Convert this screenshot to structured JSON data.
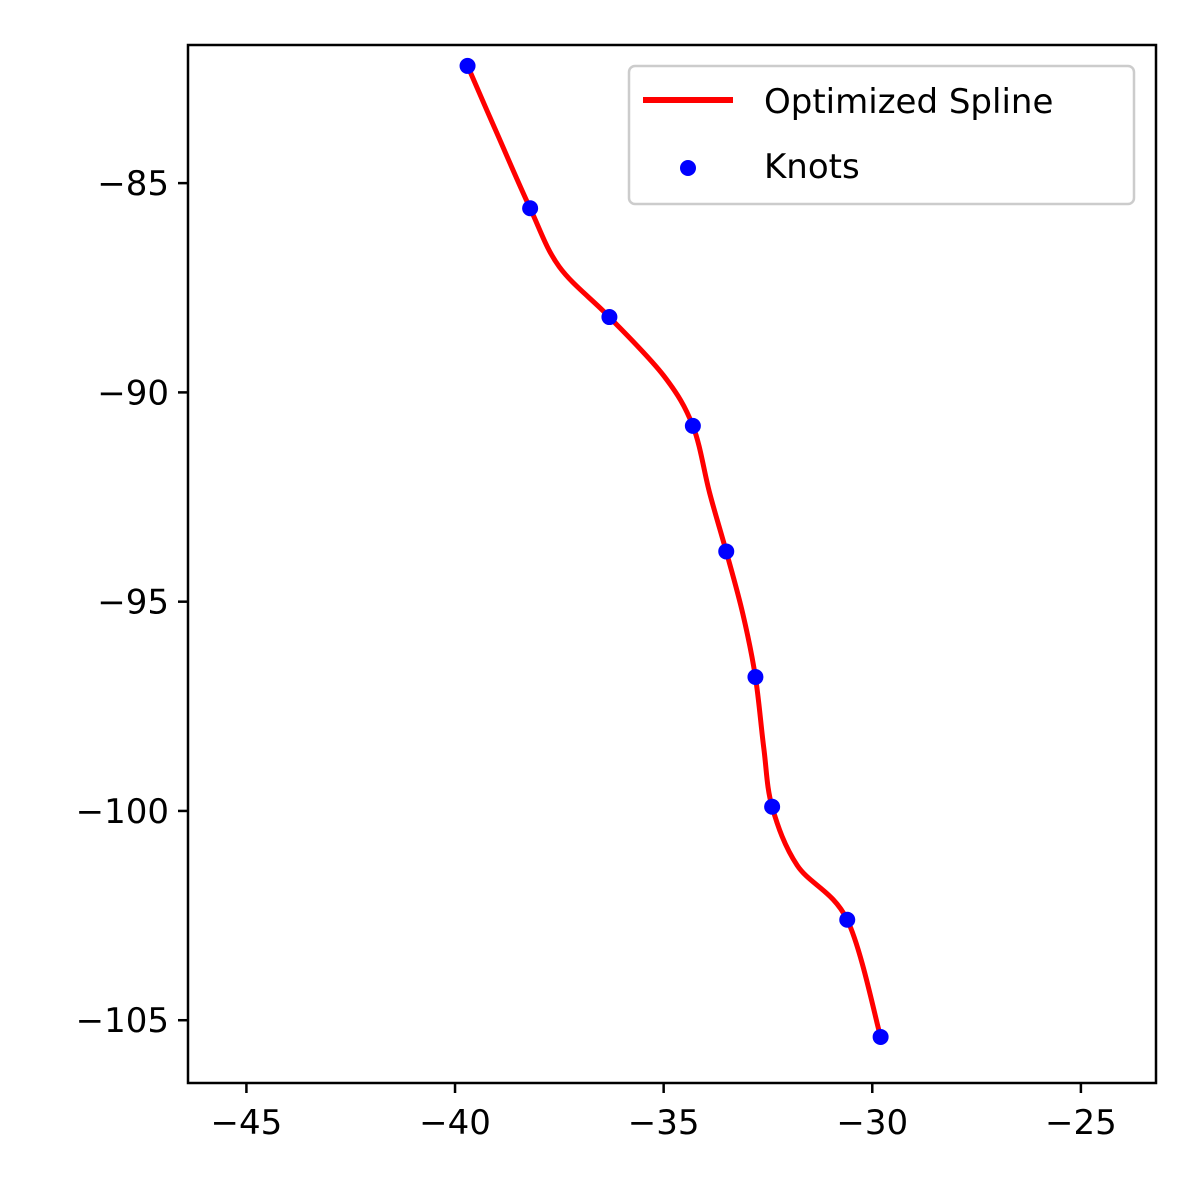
{
  "chart_data": {
    "type": "line",
    "title": "",
    "xlabel": "",
    "ylabel": "",
    "xlim": [
      -46.4,
      -23.2
    ],
    "ylim": [
      -106.5,
      -81.7
    ],
    "xticks": [
      -45,
      -40,
      -35,
      -30,
      -25
    ],
    "yticks": [
      -85,
      -90,
      -95,
      -100,
      -105
    ],
    "xtick_labels": [
      "−45",
      "−40",
      "−35",
      "−30",
      "−25"
    ],
    "ytick_labels": [
      "−85",
      "−90",
      "−95",
      "−100",
      "−105"
    ],
    "grid": false,
    "legend_position": "top-right",
    "series": [
      {
        "name": "Optimized Spline",
        "kind": "line",
        "color": "#ff0000",
        "x": [
          -39.7,
          -39.0,
          -38.2,
          -37.5,
          -36.3,
          -35.0,
          -34.3,
          -33.9,
          -33.5,
          -33.1,
          -32.8,
          -32.6,
          -32.4,
          -31.8,
          -30.6,
          -29.8
        ],
        "y": [
          -82.2,
          -83.8,
          -85.6,
          -87.0,
          -88.2,
          -89.6,
          -90.8,
          -92.4,
          -93.8,
          -95.3,
          -96.8,
          -98.5,
          -99.9,
          -101.3,
          -102.6,
          -105.4
        ]
      },
      {
        "name": "Knots",
        "kind": "scatter",
        "color": "#0000ff",
        "x": [
          -39.7,
          -38.2,
          -36.3,
          -34.3,
          -33.5,
          -32.8,
          -32.4,
          -30.6,
          -29.8
        ],
        "y": [
          -82.2,
          -85.6,
          -88.2,
          -90.8,
          -93.8,
          -96.8,
          -99.9,
          -102.6,
          -105.4
        ]
      }
    ]
  }
}
